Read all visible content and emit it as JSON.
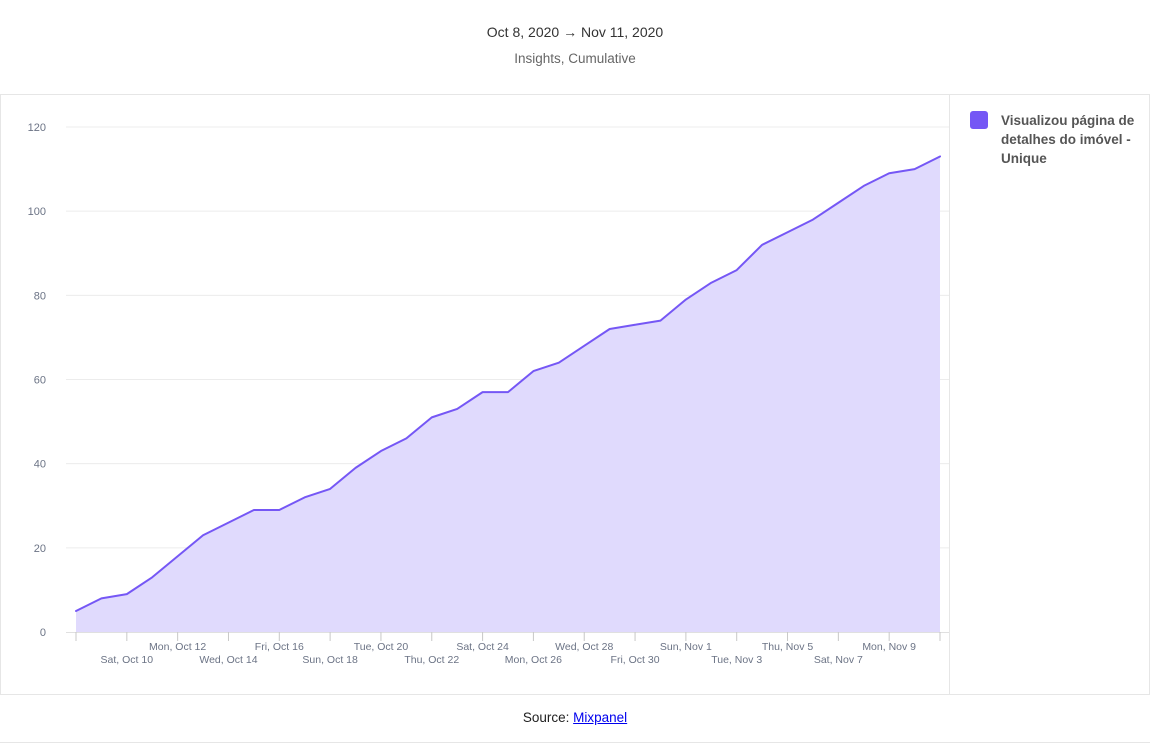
{
  "header": {
    "date_range": "Oct 8, 2020 → Nov 11, 2020",
    "subtitle": "Insights, Cumulative"
  },
  "legend": {
    "label": "Visualizou página de detalhes do imóvel - Unique",
    "color": "#7557f5"
  },
  "footer": {
    "source_prefix": "Source: ",
    "source_link": "Mixpanel"
  },
  "chart_data": {
    "type": "area",
    "ylim": [
      0,
      120
    ],
    "y_ticks": [
      0,
      20,
      40,
      60,
      80,
      100,
      120
    ],
    "grid": true,
    "legend_position": "right",
    "line_color": "#7557f5",
    "fill_color": "#e0dafd",
    "x": [
      "Oct 8",
      "Oct 9",
      "Oct 10",
      "Oct 11",
      "Oct 12",
      "Oct 13",
      "Oct 14",
      "Oct 15",
      "Oct 16",
      "Oct 17",
      "Oct 18",
      "Oct 19",
      "Oct 20",
      "Oct 21",
      "Oct 22",
      "Oct 23",
      "Oct 24",
      "Oct 25",
      "Oct 26",
      "Oct 27",
      "Oct 28",
      "Oct 29",
      "Oct 30",
      "Oct 31",
      "Nov 1",
      "Nov 2",
      "Nov 3",
      "Nov 4",
      "Nov 5",
      "Nov 6",
      "Nov 7",
      "Nov 8",
      "Nov 9",
      "Nov 10",
      "Nov 11"
    ],
    "x_tick_labels": [
      {
        "label": "Sat, Oct 10",
        "index": 2
      },
      {
        "label": "Mon, Oct 12",
        "index": 4
      },
      {
        "label": "Wed, Oct 14",
        "index": 6
      },
      {
        "label": "Fri, Oct 16",
        "index": 8
      },
      {
        "label": "Sun, Oct 18",
        "index": 10
      },
      {
        "label": "Tue, Oct 20",
        "index": 12
      },
      {
        "label": "Thu, Oct 22",
        "index": 14
      },
      {
        "label": "Sat, Oct 24",
        "index": 16
      },
      {
        "label": "Mon, Oct 26",
        "index": 18
      },
      {
        "label": "Wed, Oct 28",
        "index": 20
      },
      {
        "label": "Fri, Oct 30",
        "index": 22
      },
      {
        "label": "Sun, Nov 1",
        "index": 24
      },
      {
        "label": "Tue, Nov 3",
        "index": 26
      },
      {
        "label": "Thu, Nov 5",
        "index": 28
      },
      {
        "label": "Sat, Nov 7",
        "index": 30
      },
      {
        "label": "Mon, Nov 9",
        "index": 32
      }
    ],
    "series": [
      {
        "name": "Visualizou página de detalhes do imóvel - Unique",
        "values": [
          5,
          8,
          9,
          13,
          18,
          23,
          26,
          29,
          29,
          32,
          34,
          39,
          43,
          46,
          51,
          53,
          57,
          57,
          62,
          64,
          68,
          72,
          73,
          74,
          79,
          83,
          86,
          92,
          95,
          98,
          102,
          106,
          109,
          110,
          113
        ]
      }
    ]
  }
}
